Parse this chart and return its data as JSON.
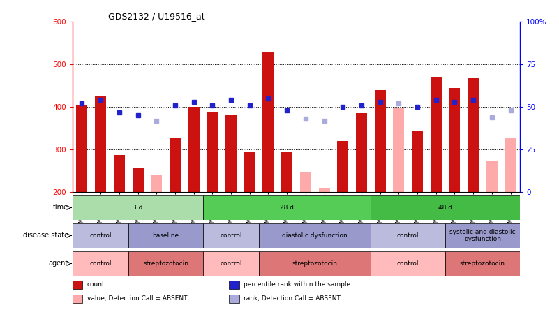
{
  "title": "GDS2132 / U19516_at",
  "samples": [
    "GSM107412",
    "GSM107413",
    "GSM107414",
    "GSM107415",
    "GSM107416",
    "GSM107417",
    "GSM107418",
    "GSM107419",
    "GSM107420",
    "GSM107421",
    "GSM107422",
    "GSM107423",
    "GSM107424",
    "GSM107425",
    "GSM107426",
    "GSM107427",
    "GSM107428",
    "GSM107429",
    "GSM107430",
    "GSM107431",
    "GSM107432",
    "GSM107433",
    "GSM107434",
    "GSM107435"
  ],
  "count": [
    405,
    425,
    288,
    256,
    null,
    328,
    400,
    388,
    380,
    295,
    528,
    295,
    null,
    null,
    320,
    385,
    440,
    null,
    345,
    470,
    445,
    468,
    null,
    null
  ],
  "count_absent": [
    null,
    null,
    null,
    null,
    240,
    null,
    null,
    null,
    null,
    null,
    null,
    null,
    247,
    210,
    null,
    null,
    null,
    398,
    null,
    null,
    null,
    null,
    272,
    328
  ],
  "percentile_rank": [
    52,
    54,
    47,
    45,
    null,
    51,
    53,
    51,
    54,
    51,
    55,
    48,
    null,
    null,
    50,
    51,
    53,
    null,
    50,
    54,
    53,
    54,
    null,
    null
  ],
  "rank_absent": [
    null,
    null,
    null,
    null,
    42,
    null,
    null,
    null,
    null,
    null,
    null,
    null,
    43,
    42,
    null,
    null,
    null,
    52,
    null,
    null,
    null,
    null,
    44,
    48
  ],
  "ylim": [
    200,
    600
  ],
  "y2lim": [
    0,
    100
  ],
  "yticks": [
    200,
    300,
    400,
    500,
    600
  ],
  "y2ticks": [
    0,
    25,
    50,
    75,
    100
  ],
  "bar_color": "#cc1111",
  "bar_absent_color": "#ffaaaa",
  "dot_color": "#2222cc",
  "dot_absent_color": "#aaaadd",
  "time_groups": [
    {
      "label": "3 d",
      "start": 0,
      "end": 7,
      "color": "#aaddaa"
    },
    {
      "label": "28 d",
      "start": 7,
      "end": 16,
      "color": "#55cc55"
    },
    {
      "label": "48 d",
      "start": 16,
      "end": 24,
      "color": "#44bb44"
    }
  ],
  "disease_groups": [
    {
      "label": "control",
      "start": 0,
      "end": 3,
      "color": "#bbbbdd"
    },
    {
      "label": "baseline",
      "start": 3,
      "end": 7,
      "color": "#9999cc"
    },
    {
      "label": "control",
      "start": 7,
      "end": 10,
      "color": "#bbbbdd"
    },
    {
      "label": "diastolic dysfunction",
      "start": 10,
      "end": 16,
      "color": "#9999cc"
    },
    {
      "label": "control",
      "start": 16,
      "end": 20,
      "color": "#bbbbdd"
    },
    {
      "label": "systolic and diastolic\ndysfunction",
      "start": 20,
      "end": 24,
      "color": "#9999cc"
    }
  ],
  "agent_groups": [
    {
      "label": "control",
      "start": 0,
      "end": 3,
      "color": "#ffbbbb"
    },
    {
      "label": "streptozotocin",
      "start": 3,
      "end": 7,
      "color": "#dd7777"
    },
    {
      "label": "control",
      "start": 7,
      "end": 10,
      "color": "#ffbbbb"
    },
    {
      "label": "streptozotocin",
      "start": 10,
      "end": 16,
      "color": "#dd7777"
    },
    {
      "label": "control",
      "start": 16,
      "end": 20,
      "color": "#ffbbbb"
    },
    {
      "label": "streptozotocin",
      "start": 20,
      "end": 24,
      "color": "#dd7777"
    }
  ],
  "row_labels": [
    "time",
    "disease state",
    "agent"
  ],
  "legend": [
    {
      "label": "count",
      "color": "#cc1111"
    },
    {
      "label": "percentile rank within the sample",
      "color": "#2222cc"
    },
    {
      "label": "value, Detection Call = ABSENT",
      "color": "#ffaaaa"
    },
    {
      "label": "rank, Detection Call = ABSENT",
      "color": "#aaaadd"
    }
  ]
}
